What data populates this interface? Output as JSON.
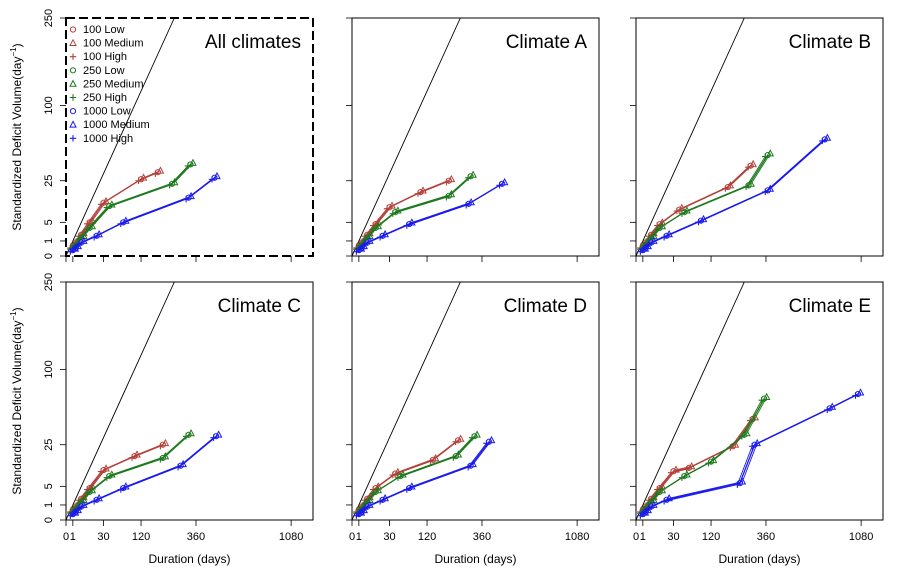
{
  "figure": {
    "ylabel": "Standardized Deficit Volume(day",
    "ylabel_sup": "−1",
    "ylabel_close": ")",
    "xlabel": "Duration (days)",
    "x_ticks": [
      "0",
      "1",
      "30",
      "120",
      "360",
      "1080"
    ],
    "y_ticks": [
      "0",
      "1",
      "5",
      "25",
      "100",
      "250"
    ]
  },
  "legend": [
    {
      "label": "100 Low",
      "color": "#b5403a",
      "marker": "circle"
    },
    {
      "label": "100 Medium",
      "color": "#b5403a",
      "marker": "triangle"
    },
    {
      "label": "100 High",
      "color": "#b5403a",
      "marker": "plus"
    },
    {
      "label": "250 Low",
      "color": "#1e7a1e",
      "marker": "circle"
    },
    {
      "label": "250 Medium",
      "color": "#1e7a1e",
      "marker": "triangle"
    },
    {
      "label": "250 High",
      "color": "#1e7a1e",
      "marker": "plus"
    },
    {
      "label": "1000 Low",
      "color": "#1a1aee",
      "marker": "circle"
    },
    {
      "label": "1000 Medium",
      "color": "#1a1aee",
      "marker": "triangle"
    },
    {
      "label": "1000 High",
      "color": "#1a1aee",
      "marker": "plus"
    }
  ],
  "colors": {
    "g100": "#b5403a",
    "g250": "#1e7a1e",
    "g1000": "#1a1aee"
  },
  "chart_data": [
    {
      "type": "line",
      "title": "All climates",
      "x_scale": "sqrt",
      "y_scale": "sqrt",
      "xlim": [
        0,
        1300
      ],
      "ylim": [
        0,
        250
      ],
      "reference_line": "y = x",
      "series": [
        {
          "group": "100",
          "x": [
            1,
            2,
            5,
            12,
            30,
            120,
            180
          ],
          "y": [
            0.4,
            0.8,
            2,
            5,
            12.5,
            26,
            31
          ]
        },
        {
          "group": "250",
          "x": [
            1,
            2,
            5,
            12,
            40,
            240,
            330
          ],
          "y": [
            0.3,
            0.6,
            1.5,
            3.5,
            11,
            23,
            37
          ]
        },
        {
          "group": "1000",
          "x": [
            1,
            2,
            5,
            20,
            70,
            320,
            470
          ],
          "y": [
            0.15,
            0.3,
            0.8,
            1.8,
            5,
            15,
            27
          ]
        }
      ]
    },
    {
      "type": "line",
      "title": "Climate A",
      "x_scale": "sqrt",
      "y_scale": "sqrt",
      "xlim": [
        0,
        1300
      ],
      "ylim": [
        0,
        250
      ],
      "reference_line": "y = x",
      "series": [
        {
          "group": "100",
          "x": [
            1,
            2,
            5,
            12,
            30,
            100,
            200
          ],
          "y": [
            0.4,
            0.8,
            2,
            4.5,
            10.5,
            18,
            25
          ]
        },
        {
          "group": "250",
          "x": [
            1,
            2,
            5,
            12,
            40,
            200,
            300
          ],
          "y": [
            0.3,
            0.6,
            1.5,
            3.5,
            8.5,
            16,
            28
          ]
        },
        {
          "group": "1000",
          "x": [
            1,
            2,
            5,
            20,
            70,
            290,
            480
          ],
          "y": [
            0.15,
            0.3,
            0.8,
            1.8,
            4.5,
            12,
            23
          ]
        }
      ]
    },
    {
      "type": "line",
      "title": "Climate B",
      "x_scale": "sqrt",
      "y_scale": "sqrt",
      "xlim": [
        0,
        1300
      ],
      "ylim": [
        0,
        250
      ],
      "reference_line": "y = x",
      "series": [
        {
          "group": "100",
          "x": [
            1,
            2,
            5,
            12,
            40,
            180,
            280
          ],
          "y": [
            0.4,
            0.8,
            2,
            4.5,
            9.5,
            21,
            36
          ]
        },
        {
          "group": "250",
          "x": [
            1,
            2,
            5,
            12,
            50,
            270,
            370
          ],
          "y": [
            0.3,
            0.6,
            1.5,
            3.5,
            8.5,
            22,
            45
          ]
        },
        {
          "group": "1000",
          "x": [
            1,
            2,
            5,
            20,
            90,
            370,
            760
          ],
          "y": [
            0.15,
            0.3,
            0.8,
            1.8,
            5.5,
            19,
            60
          ]
        }
      ]
    },
    {
      "type": "line",
      "title": "Climate C",
      "x_scale": "sqrt",
      "y_scale": "sqrt",
      "xlim": [
        0,
        1300
      ],
      "ylim": [
        0,
        250
      ],
      "reference_line": "y = x",
      "series": [
        {
          "group": "100",
          "x": [
            1,
            2,
            5,
            12,
            30,
            100,
            200
          ],
          "y": [
            0.4,
            0.8,
            2,
            4.5,
            11,
            18,
            25
          ]
        },
        {
          "group": "250",
          "x": [
            1,
            2,
            5,
            12,
            40,
            200,
            320
          ],
          "y": [
            0.3,
            0.6,
            1.5,
            3.5,
            8.5,
            17,
            32
          ]
        },
        {
          "group": "1000",
          "x": [
            1,
            2,
            5,
            20,
            70,
            280,
            480
          ],
          "y": [
            0.15,
            0.3,
            0.8,
            1.8,
            4.5,
            13,
            31
          ]
        }
      ]
    },
    {
      "type": "line",
      "title": "Climate D",
      "x_scale": "sqrt",
      "y_scale": "sqrt",
      "xlim": [
        0,
        1300
      ],
      "ylim": [
        0,
        250
      ],
      "reference_line": "y = x",
      "series": [
        {
          "group": "100",
          "x": [
            1,
            2,
            5,
            12,
            40,
            140,
            240
          ],
          "y": [
            0.4,
            0.8,
            2,
            4.5,
            9.5,
            16,
            28
          ]
        },
        {
          "group": "250",
          "x": [
            1,
            2,
            5,
            12,
            50,
            230,
            320
          ],
          "y": [
            0.3,
            0.6,
            1.5,
            3.5,
            8.5,
            18,
            31
          ]
        },
        {
          "group": "1000",
          "x": [
            1,
            2,
            5,
            20,
            70,
            300,
            400
          ],
          "y": [
            0.15,
            0.3,
            0.8,
            1.8,
            4.5,
            13,
            27
          ]
        }
      ]
    },
    {
      "type": "line",
      "title": "Climate E",
      "x_scale": "sqrt",
      "y_scale": "sqrt",
      "xlim": [
        0,
        1300
      ],
      "ylim": [
        0,
        250
      ],
      "reference_line": "y = x",
      "series": [
        {
          "group": "100",
          "x": [
            1,
            2,
            5,
            12,
            30,
            60,
            200,
            290
          ],
          "y": [
            0.4,
            0.8,
            2,
            4.5,
            10.5,
            12,
            24,
            45
          ]
        },
        {
          "group": "250",
          "x": [
            1,
            2,
            5,
            12,
            50,
            120,
            250,
            350
          ],
          "y": [
            0.3,
            0.6,
            1.5,
            3.5,
            8.5,
            15,
            32,
            65
          ]
        },
        {
          "group": "1000",
          "x": [
            1,
            2,
            5,
            20,
            230,
            300,
            800,
            1050
          ],
          "y": [
            0.15,
            0.3,
            0.8,
            1.8,
            6,
            25,
            55,
            70
          ]
        }
      ]
    }
  ]
}
